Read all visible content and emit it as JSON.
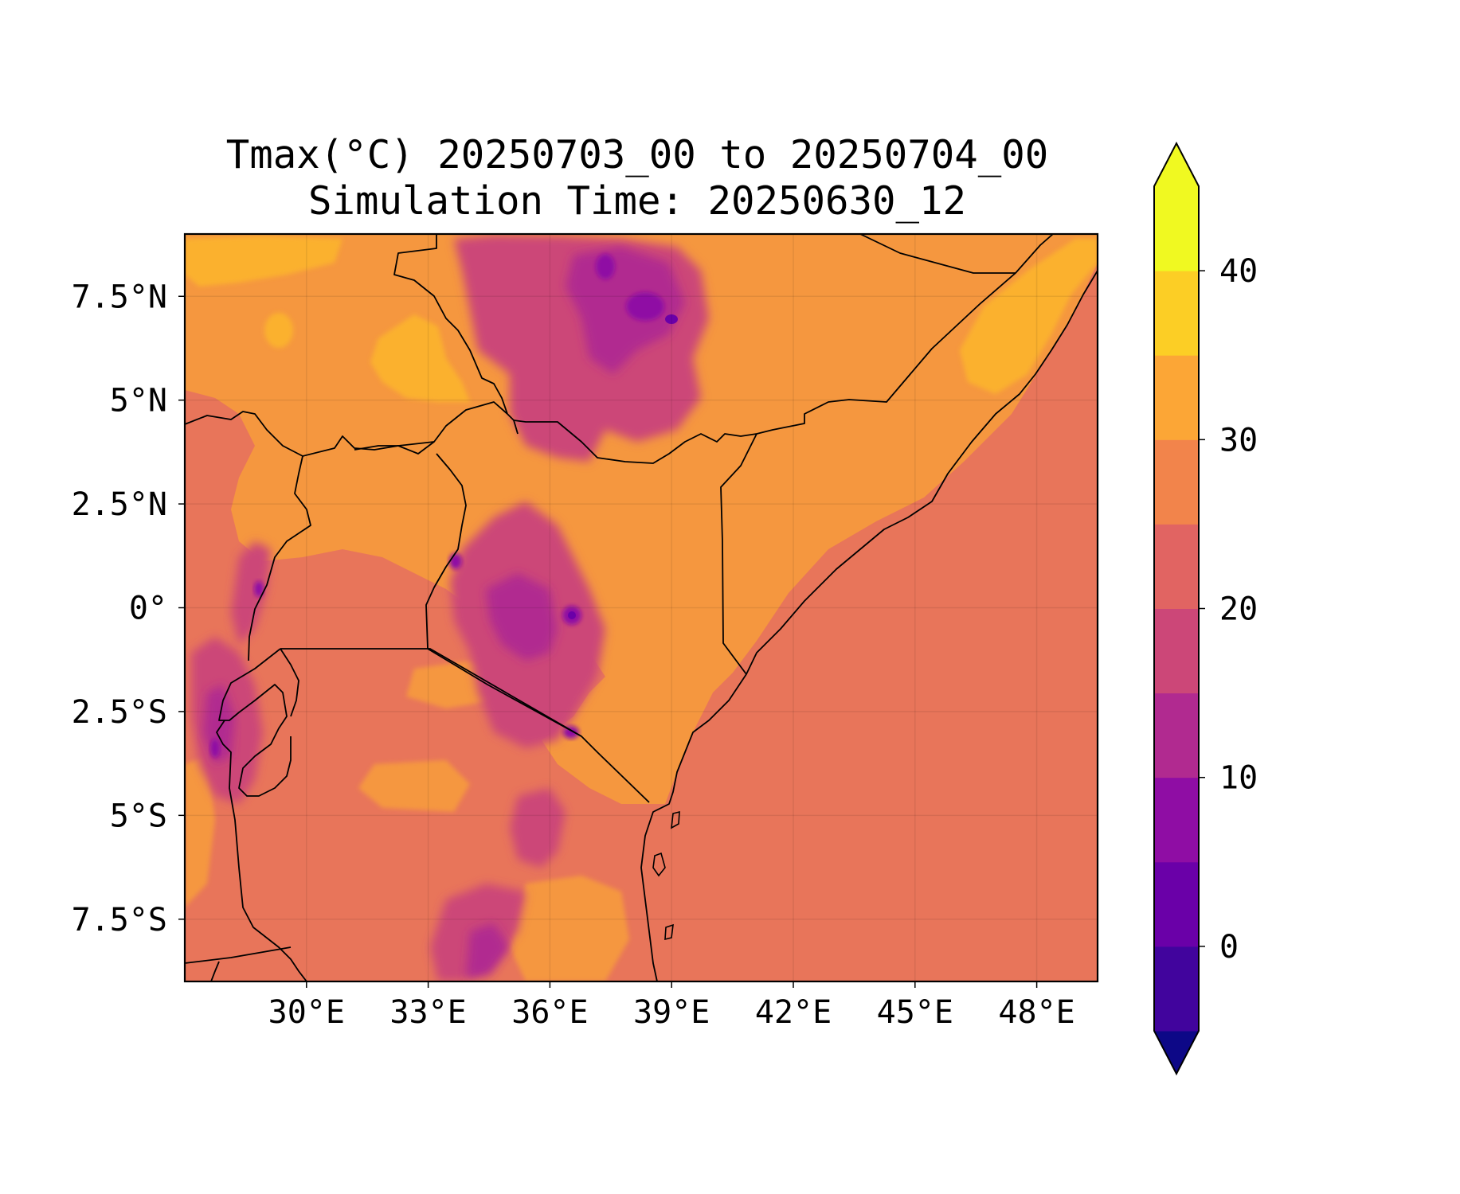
{
  "figure": {
    "title_line_1": "Tmax(°C) 20250703_00 to 20250704_00",
    "title_line_2": "Simulation Time: 20250630_12"
  },
  "chart_data": {
    "type": "heatmap",
    "variable": "Tmax",
    "units": "°C",
    "lon_range": [
      27.0,
      49.5
    ],
    "lat_range": [
      -9.0,
      9.0
    ],
    "x_ticks": [
      30,
      33,
      36,
      39,
      42,
      45,
      48
    ],
    "y_ticks": [
      7.5,
      5,
      2.5,
      0,
      -2.5,
      -5,
      -7.5
    ],
    "x_tick_labels": [
      "30°E",
      "33°E",
      "36°E",
      "39°E",
      "42°E",
      "45°E",
      "48°E"
    ],
    "y_tick_labels": [
      "7.5°N",
      "5°N",
      "2.5°N",
      "0°",
      "2.5°S",
      "5°S",
      "7.5°S"
    ],
    "grid": true,
    "colorbar": {
      "levels": [
        -5,
        0,
        5,
        10,
        15,
        20,
        25,
        30,
        35,
        40,
        45
      ],
      "tick_values": [
        0,
        10,
        20,
        30,
        40
      ],
      "tick_labels": [
        "0",
        "10",
        "20",
        "30",
        "40"
      ],
      "extend": "both",
      "under_color": "#0d0887",
      "over_color": "#f0f921",
      "colors": [
        "#0d0887",
        "#41049d",
        "#6a00a8",
        "#8f0da4",
        "#b12a90",
        "#cc4778",
        "#e16462",
        "#f2844b",
        "#fca636",
        "#fcce25",
        "#f0f921"
      ]
    },
    "dominant_values": {
      "indian_ocean": "25-30",
      "eastern_somalia_lowlands": "30-35",
      "northeast_somalia_coast": "35-40",
      "ethiopian_highlands": "10-25",
      "kenya_central_highlands": "10-25",
      "south_sudan_plains": "30-40",
      "tanzania_interior": "20-35"
    }
  }
}
